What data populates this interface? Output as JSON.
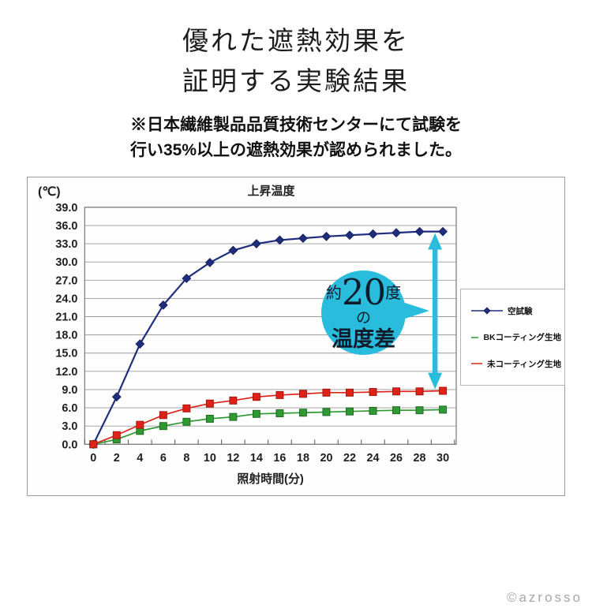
{
  "header": {
    "title_line1": "優れた遮熱効果を",
    "title_line2": "証明する実験結果",
    "note_line1": "※日本繊維製品品質技術センターにて試験を",
    "note_line2": "行い35%以上の遮熱効果が認められました。"
  },
  "chart_data": {
    "type": "line",
    "title": "上昇温度",
    "unit_label": "(℃)",
    "xlabel": "照射時間(分)",
    "x": [
      0,
      2,
      4,
      6,
      8,
      10,
      12,
      14,
      16,
      18,
      20,
      22,
      24,
      26,
      28,
      30
    ],
    "ylim": [
      0,
      39
    ],
    "ytick_step": 3,
    "grid": true,
    "legend_position": "right",
    "series": [
      {
        "name": "空試験",
        "color": "#1f2d7d",
        "marker": "diamond",
        "marker_border": "#141d55",
        "values": [
          0.0,
          7.8,
          16.5,
          22.9,
          27.3,
          29.9,
          31.9,
          33.0,
          33.6,
          33.9,
          34.2,
          34.4,
          34.6,
          34.8,
          35.0,
          35.0
        ]
      },
      {
        "name": "BKコーティング生地",
        "color": "#2f9933",
        "marker": "square",
        "marker_border": "#1d6b20",
        "values": [
          0.0,
          0.8,
          2.2,
          3.0,
          3.7,
          4.2,
          4.5,
          5.0,
          5.1,
          5.2,
          5.3,
          5.4,
          5.5,
          5.6,
          5.6,
          5.7
        ]
      },
      {
        "name": "未コーティング生地",
        "color": "#dd2318",
        "marker": "square",
        "marker_border": "#a5150e",
        "values": [
          0.0,
          1.5,
          3.2,
          4.8,
          5.9,
          6.7,
          7.2,
          7.8,
          8.1,
          8.3,
          8.5,
          8.5,
          8.6,
          8.7,
          8.7,
          8.8
        ]
      }
    ],
    "style": {
      "grid_color": "#9a9a9a",
      "plot_border_color": "#777777",
      "tick_color": "#555555",
      "text_color": "#1f1f1f"
    }
  },
  "annotation": {
    "bubble_prefix": "約",
    "bubble_number": "20",
    "bubble_suffix": "度",
    "bubble_particle": "の",
    "bubble_main": "温度差",
    "bubble_color": "#2abcdc",
    "arrow_color": "#2abcdc",
    "text_color": "#101c2c"
  },
  "watermark": "©azrosso"
}
